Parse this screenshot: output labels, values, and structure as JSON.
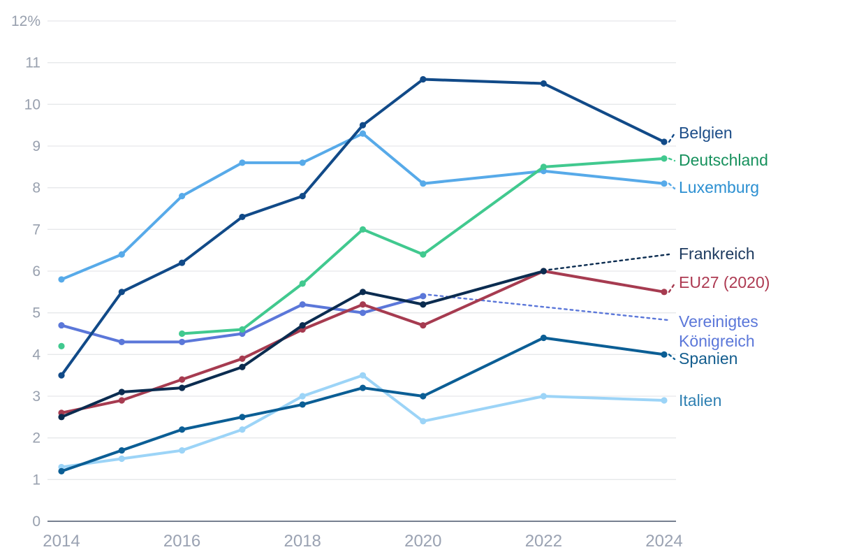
{
  "chart_data": {
    "type": "line",
    "title": "",
    "unit": "%",
    "xlabel": "",
    "ylabel": "",
    "ylim": [
      0,
      12
    ],
    "grid": "horizontal",
    "legend_position": "right-of-line-ends",
    "x": [
      2014,
      2015,
      2016,
      2017,
      2018,
      2019,
      2020,
      2022,
      2024
    ],
    "x_tick_labels": [
      "2014",
      "2016",
      "2018",
      "2020",
      "2022",
      "2024"
    ],
    "x_tick_values": [
      2014,
      2016,
      2018,
      2020,
      2022,
      2024
    ],
    "y_tick_labels": [
      "12%",
      "11",
      "10",
      "9",
      "8",
      "7",
      "6",
      "5",
      "4",
      "3",
      "2",
      "1",
      "0"
    ],
    "y_tick_values": [
      12,
      11,
      10,
      9,
      8,
      7,
      6,
      5,
      4,
      3,
      2,
      1,
      0
    ],
    "series": [
      {
        "id": "italien",
        "name": "Italien",
        "label_lines": [
          "Italien"
        ],
        "color": "#9cd4f7",
        "label_color": "#2f80b2",
        "connector": "stub",
        "values": [
          1.3,
          1.5,
          1.7,
          2.2,
          3.0,
          3.5,
          2.4,
          3.0,
          2.9
        ]
      },
      {
        "id": "spanien",
        "name": "Spanien",
        "label_lines": [
          "Spanien"
        ],
        "color": "#0b5e95",
        "label_color": "#135d8e",
        "connector": "stub",
        "values": [
          1.2,
          1.7,
          2.2,
          2.5,
          2.8,
          3.2,
          3.0,
          4.4,
          4.0
        ]
      },
      {
        "id": "vereinigtes-koenigreich",
        "name": "Vereinigtes Königreich",
        "label_lines": [
          "Vereinigtes",
          "Königreich"
        ],
        "color": "#5b77d9",
        "label_color": "#5b77d9",
        "connector": "dashed",
        "values": [
          4.7,
          4.3,
          4.3,
          4.5,
          5.2,
          5.0,
          5.4,
          null,
          null
        ]
      },
      {
        "id": "eu27",
        "name": "EU27 (2020)",
        "label_lines": [
          "EU27 (2020)"
        ],
        "color": "#a63b50",
        "label_color": "#ad3a52",
        "connector": "stub",
        "values": [
          2.6,
          2.9,
          3.4,
          3.9,
          4.6,
          5.2,
          4.7,
          6.0,
          5.5
        ]
      },
      {
        "id": "frankreich",
        "name": "Frankreich",
        "label_lines": [
          "Frankreich"
        ],
        "color": "#0b2c50",
        "label_color": "#1d3a5f",
        "connector": "dashed",
        "values": [
          2.5,
          3.1,
          3.2,
          3.7,
          4.7,
          5.5,
          5.2,
          6.0,
          null
        ]
      },
      {
        "id": "luxemburg",
        "name": "Luxemburg",
        "label_lines": [
          "Luxemburg"
        ],
        "color": "#57aae9",
        "label_color": "#2b8fd1",
        "connector": "stub",
        "values": [
          5.8,
          6.4,
          7.8,
          8.6,
          8.6,
          9.3,
          8.1,
          8.4,
          8.1
        ]
      },
      {
        "id": "deutschland",
        "name": "Deutschland",
        "label_lines": [
          "Deutschland"
        ],
        "color": "#41c98f",
        "label_color": "#17915d",
        "connector": "stub",
        "values": [
          4.2,
          null,
          4.5,
          4.6,
          5.7,
          7.0,
          6.4,
          8.5,
          8.7
        ]
      },
      {
        "id": "belgien",
        "name": "Belgien",
        "label_lines": [
          "Belgien"
        ],
        "color": "#114a88",
        "label_color": "#1c4d88",
        "connector": "stub",
        "values": [
          3.5,
          5.5,
          6.2,
          7.3,
          7.8,
          9.5,
          10.6,
          10.5,
          9.1
        ]
      }
    ],
    "colors": {
      "grid": "#e6e8ea",
      "axis_line": "#767f90",
      "y_tick_text": "#98a0ae",
      "x_tick_text": "#9aa2b2",
      "background": "#ffffff"
    }
  }
}
